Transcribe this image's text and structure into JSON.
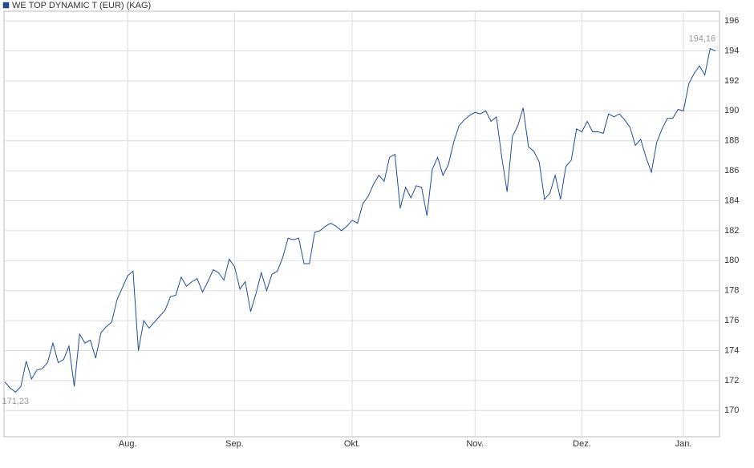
{
  "chart_data": {
    "type": "line",
    "title": "WE TOP DYNAMIC T (EUR) (KAG)",
    "categories": [
      null,
      null,
      null,
      null,
      null,
      null,
      null,
      null,
      null,
      null,
      null,
      null,
      null,
      null,
      null,
      null,
      null,
      null,
      null,
      null,
      null,
      null,
      null,
      "Aug.",
      null,
      null,
      null,
      null,
      null,
      null,
      null,
      null,
      null,
      null,
      null,
      null,
      null,
      null,
      null,
      null,
      null,
      null,
      null,
      "Sep.",
      null,
      null,
      null,
      null,
      null,
      null,
      null,
      null,
      null,
      null,
      null,
      null,
      null,
      null,
      null,
      null,
      null,
      null,
      null,
      null,
      null,
      "Okt.",
      null,
      null,
      null,
      null,
      null,
      null,
      null,
      null,
      null,
      null,
      null,
      null,
      null,
      null,
      null,
      null,
      null,
      null,
      null,
      null,
      null,
      null,
      "Nov.",
      null,
      null,
      null,
      null,
      null,
      null,
      null,
      null,
      null,
      null,
      null,
      null,
      null,
      null,
      null,
      null,
      null,
      null,
      null,
      "Dez.",
      null,
      null,
      null,
      null,
      null,
      null,
      null,
      null,
      null,
      null,
      null,
      null,
      null,
      null,
      null,
      null,
      null,
      null,
      "Jan.",
      null,
      null,
      null,
      null,
      null,
      null
    ],
    "series": [
      {
        "name": "WE TOP DYNAMIC T (EUR) (KAG)",
        "color": "#1f4e9c",
        "values": [
          171.9,
          171.5,
          171.23,
          171.6,
          173.3,
          172.1,
          172.7,
          172.8,
          173.2,
          174.5,
          173.2,
          173.4,
          174.3,
          171.6,
          175.1,
          174.5,
          174.7,
          173.5,
          175.2,
          175.6,
          175.9,
          177.4,
          178.2,
          179.0,
          179.3,
          174.0,
          176.0,
          175.5,
          175.9,
          176.3,
          176.7,
          177.6,
          177.7,
          178.9,
          178.3,
          178.6,
          178.8,
          177.9,
          178.6,
          179.4,
          179.2,
          178.7,
          180.1,
          179.6,
          178.1,
          178.6,
          176.6,
          177.8,
          179.2,
          178.0,
          179.1,
          179.3,
          180.2,
          181.5,
          181.4,
          181.5,
          179.8,
          179.8,
          181.9,
          182.0,
          182.3,
          182.5,
          182.3,
          182.0,
          182.3,
          182.7,
          182.5,
          183.8,
          184.3,
          185.1,
          185.7,
          185.3,
          186.9,
          187.1,
          183.5,
          184.9,
          184.2,
          185.0,
          184.9,
          183.0,
          186.1,
          186.9,
          185.7,
          186.4,
          187.9,
          189.0,
          189.4,
          189.7,
          189.9,
          189.8,
          190.0,
          189.3,
          189.6,
          186.9,
          184.6,
          188.3,
          189.0,
          190.2,
          187.6,
          187.3,
          186.6,
          184.1,
          184.5,
          185.7,
          184.1,
          186.3,
          186.7,
          188.8,
          188.6,
          189.3,
          188.6,
          188.6,
          188.5,
          189.8,
          189.6,
          189.8,
          189.4,
          188.9,
          187.7,
          188.1,
          186.9,
          185.9,
          187.9,
          188.8,
          189.5,
          189.5,
          190.1,
          190.0,
          191.8,
          192.5,
          193.0,
          192.4,
          194.16,
          194.0
        ]
      }
    ],
    "min_label": "171,23",
    "max_label": "194,16",
    "ylim": [
      168.25,
      196.65
    ],
    "yticks": [
      170,
      172,
      174,
      176,
      178,
      180,
      182,
      184,
      186,
      188,
      190,
      192,
      194,
      196
    ],
    "grid": true
  }
}
